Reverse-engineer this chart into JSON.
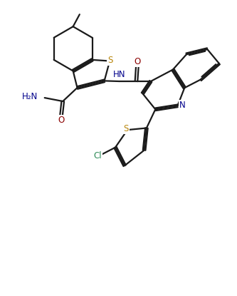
{
  "background_color": "#ffffff",
  "line_color": "#1a1a1a",
  "atom_colors": {
    "S": "#b8860b",
    "N": "#00008b",
    "O": "#8b0000",
    "Cl": "#2e8b57",
    "C": "#1a1a1a"
  },
  "line_width": 1.6,
  "font_size": 8.5,
  "dbo": 0.055
}
